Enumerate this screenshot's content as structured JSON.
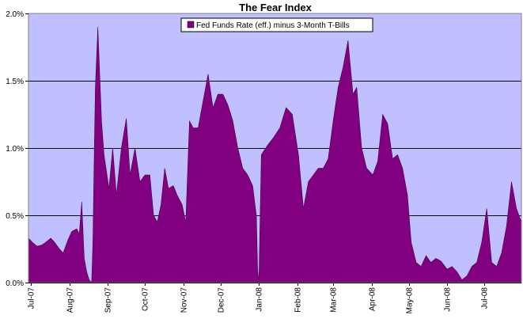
{
  "chart_data": {
    "type": "area",
    "title": "The Fear Index",
    "xlabel": "",
    "ylabel": "",
    "grid": true,
    "legend_position": "top-center",
    "ylim": [
      0,
      2.0
    ],
    "xlim": [
      "2007-06-29",
      "2008-07-31"
    ],
    "y_ticks": [
      0,
      0.5,
      1.0,
      1.5,
      2.0
    ],
    "y_tick_labels": [
      "0.0%",
      "0.5%",
      "1.0%",
      "1.5%",
      "2.0%"
    ],
    "x_ticks": [
      "2007-07-01",
      "2007-08-01",
      "2007-09-01",
      "2007-10-01",
      "2007-11-01",
      "2007-12-01",
      "2008-01-01",
      "2008-02-01",
      "2008-03-01",
      "2008-04-01",
      "2008-05-01",
      "2008-06-01",
      "2008-07-01"
    ],
    "x_tick_labels": [
      "Jul-07",
      "Aug-07",
      "Sep-07",
      "Oct-07",
      "Nov-07",
      "Dec-07",
      "Jan-08",
      "Feb-08",
      "Mar-08",
      "Apr-08",
      "May-08",
      "Jun-08",
      "Jul-08"
    ],
    "colors": {
      "plot_bg": "#c0c0ff",
      "series_fill": "#800080",
      "series_stroke": "#4b004b",
      "grid": "#000000"
    },
    "series": [
      {
        "name": "Fed Funds Rate (eff.) minus 3-Month T-Bills",
        "x": [
          "2007-06-29",
          "2007-07-02",
          "2007-07-06",
          "2007-07-10",
          "2007-07-13",
          "2007-07-17",
          "2007-07-20",
          "2007-07-24",
          "2007-07-27",
          "2007-07-31",
          "2007-08-03",
          "2007-08-07",
          "2007-08-09",
          "2007-08-11",
          "2007-08-13",
          "2007-08-15",
          "2007-08-17",
          "2007-08-19",
          "2007-08-20",
          "2007-08-21",
          "2007-08-22",
          "2007-08-24",
          "2007-08-27",
          "2007-08-29",
          "2007-09-02",
          "2007-09-05",
          "2007-09-08",
          "2007-09-12",
          "2007-09-16",
          "2007-09-19",
          "2007-09-23",
          "2007-09-27",
          "2007-10-01",
          "2007-10-05",
          "2007-10-08",
          "2007-10-11",
          "2007-10-14",
          "2007-10-17",
          "2007-10-20",
          "2007-10-24",
          "2007-10-27",
          "2007-10-31",
          "2007-11-03",
          "2007-11-06",
          "2007-11-09",
          "2007-11-13",
          "2007-11-17",
          "2007-11-21",
          "2007-11-25",
          "2007-11-29",
          "2007-12-03",
          "2007-12-07",
          "2007-12-11",
          "2007-12-15",
          "2007-12-19",
          "2007-12-23",
          "2007-12-27",
          "2007-12-30",
          "2007-12-31",
          "2008-01-01",
          "2008-01-03",
          "2008-01-08",
          "2008-01-13",
          "2008-01-18",
          "2008-01-23",
          "2008-01-28",
          "2008-02-02",
          "2008-02-06",
          "2008-02-10",
          "2008-02-14",
          "2008-02-18",
          "2008-02-22",
          "2008-02-26",
          "2008-03-01",
          "2008-03-05",
          "2008-03-09",
          "2008-03-13",
          "2008-03-17",
          "2008-03-20",
          "2008-03-24",
          "2008-03-28",
          "2008-04-02",
          "2008-04-06",
          "2008-04-10",
          "2008-04-14",
          "2008-04-18",
          "2008-04-22",
          "2008-04-26",
          "2008-04-30",
          "2008-05-03",
          "2008-05-07",
          "2008-05-11",
          "2008-05-15",
          "2008-05-19",
          "2008-05-23",
          "2008-05-27",
          "2008-06-01",
          "2008-06-05",
          "2008-06-09",
          "2008-06-13",
          "2008-06-17",
          "2008-06-21",
          "2008-06-25",
          "2008-06-29",
          "2008-07-03",
          "2008-07-07",
          "2008-07-11",
          "2008-07-15",
          "2008-07-19",
          "2008-07-23",
          "2008-07-27",
          "2008-07-31"
        ],
        "values": [
          0.33,
          0.3,
          0.27,
          0.28,
          0.3,
          0.33,
          0.3,
          0.25,
          0.22,
          0.32,
          0.38,
          0.4,
          0.36,
          0.6,
          0.18,
          0.08,
          0.02,
          0.0,
          0.3,
          0.9,
          1.45,
          1.9,
          1.2,
          0.95,
          0.7,
          1.0,
          0.65,
          1.0,
          1.22,
          0.8,
          1.0,
          0.75,
          0.8,
          0.8,
          0.5,
          0.45,
          0.58,
          0.85,
          0.7,
          0.72,
          0.65,
          0.58,
          0.45,
          1.2,
          1.15,
          1.15,
          1.35,
          1.55,
          1.3,
          1.4,
          1.4,
          1.32,
          1.2,
          1.0,
          0.85,
          0.8,
          0.72,
          0.5,
          0.1,
          0.0,
          0.95,
          1.02,
          1.08,
          1.15,
          1.3,
          1.25,
          0.95,
          0.55,
          0.75,
          0.8,
          0.85,
          0.85,
          0.92,
          1.2,
          1.45,
          1.6,
          1.8,
          1.4,
          1.45,
          1.0,
          0.85,
          0.8,
          0.9,
          1.25,
          1.18,
          0.92,
          0.95,
          0.85,
          0.65,
          0.3,
          0.15,
          0.12,
          0.2,
          0.15,
          0.18,
          0.16,
          0.1,
          0.12,
          0.08,
          0.02,
          0.05,
          0.12,
          0.15,
          0.3,
          0.55,
          0.15,
          0.12,
          0.22,
          0.42,
          0.75,
          0.55,
          0.45
        ]
      }
    ]
  }
}
